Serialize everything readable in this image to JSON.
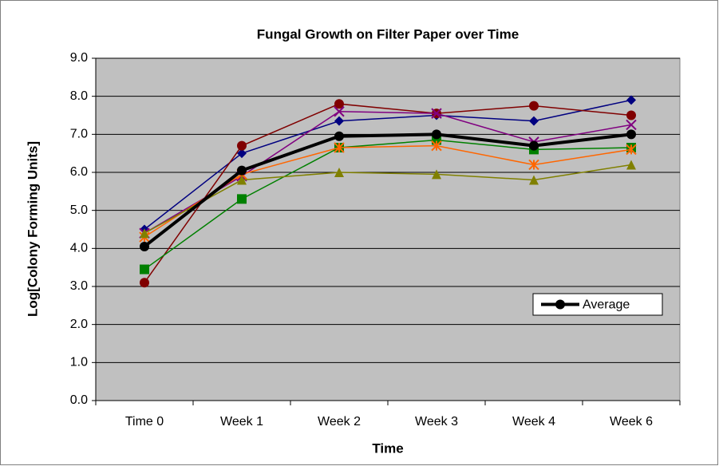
{
  "chart_data": {
    "type": "line",
    "title": "Fungal Growth on Filter Paper over Time",
    "x_label": "Time",
    "y_label": "Log[Colony Forming Units]",
    "categories": [
      "Time 0",
      "Week 1",
      "Week 2",
      "Week 3",
      "Week 4",
      "Week 6"
    ],
    "ylim": [
      0,
      9
    ],
    "yticks": [
      {
        "value": 0,
        "label": "0.0"
      },
      {
        "value": 1,
        "label": "1.0"
      },
      {
        "value": 2,
        "label": "2.0"
      },
      {
        "value": 3,
        "label": "3.0"
      },
      {
        "value": 4,
        "label": "4.0"
      },
      {
        "value": 5,
        "label": "5.0"
      },
      {
        "value": 6,
        "label": "6.0"
      },
      {
        "value": 7,
        "label": "7.0"
      },
      {
        "value": 8,
        "label": "8.0"
      },
      {
        "value": 9,
        "label": "9.0"
      }
    ],
    "grid": true,
    "legend": "right",
    "series": [
      {
        "color": "#000080",
        "marker": "diamond",
        "line_width": 1.5,
        "values": [
          4.5,
          6.5,
          7.35,
          7.5,
          7.35,
          7.9
        ]
      },
      {
        "color": "#800000",
        "marker": "circle",
        "line_width": 1.5,
        "values": [
          3.1,
          6.7,
          7.8,
          7.55,
          7.75,
          7.5
        ]
      },
      {
        "color": "#800080",
        "marker": "x",
        "line_width": 1.5,
        "values": [
          4.4,
          5.9,
          7.6,
          7.55,
          6.8,
          7.25
        ]
      },
      {
        "color": "#008000",
        "marker": "square",
        "line_width": 1.5,
        "values": [
          3.45,
          5.3,
          6.65,
          6.85,
          6.6,
          6.65
        ]
      },
      {
        "color": "#ff6600",
        "marker": "asterisk",
        "line_width": 1.5,
        "values": [
          4.3,
          5.95,
          6.65,
          6.7,
          6.2,
          6.6
        ]
      },
      {
        "color": "#808000",
        "marker": "triangle",
        "line_width": 1.5,
        "values": [
          4.4,
          5.8,
          6.0,
          5.95,
          5.8,
          6.2
        ]
      },
      {
        "name": "Average",
        "color": "#000000",
        "marker": "circle",
        "line_width": 4,
        "values": [
          4.05,
          6.05,
          6.95,
          7.0,
          6.7,
          7.0
        ]
      }
    ]
  }
}
